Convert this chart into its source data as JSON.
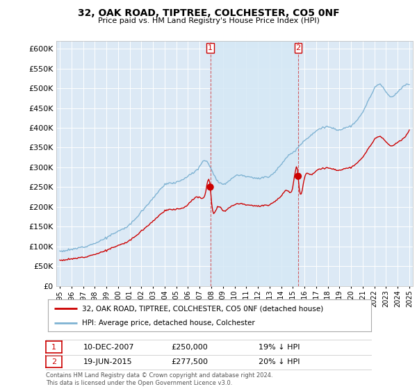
{
  "title": "32, OAK ROAD, TIPTREE, COLCHESTER, CO5 0NF",
  "subtitle": "Price paid vs. HM Land Registry's House Price Index (HPI)",
  "ylim": [
    0,
    620000
  ],
  "yticks": [
    0,
    50000,
    100000,
    150000,
    200000,
    250000,
    300000,
    350000,
    400000,
    450000,
    500000,
    550000,
    600000
  ],
  "background_color": "#ffffff",
  "plot_bg_color": "#dce9f5",
  "grid_color": "#ffffff",
  "legend_label_red": "32, OAK ROAD, TIPTREE, COLCHESTER, CO5 0NF (detached house)",
  "legend_label_blue": "HPI: Average price, detached house, Colchester",
  "annotation1_label": "1",
  "annotation1_date": "10-DEC-2007",
  "annotation1_price": "£250,000",
  "annotation1_hpi": "19% ↓ HPI",
  "annotation2_label": "2",
  "annotation2_date": "19-JUN-2015",
  "annotation2_price": "£277,500",
  "annotation2_hpi": "20% ↓ HPI",
  "footer": "Contains HM Land Registry data © Crown copyright and database right 2024.\nThis data is licensed under the Open Government Licence v3.0.",
  "red_color": "#cc0000",
  "blue_color": "#7fb3d3",
  "shade_color": "#d6e8f5",
  "sale1_x": 2007.917,
  "sale1_y": 250000,
  "sale2_x": 2015.458,
  "sale2_y": 277500,
  "xlim_left": 1994.7,
  "xlim_right": 2025.3
}
